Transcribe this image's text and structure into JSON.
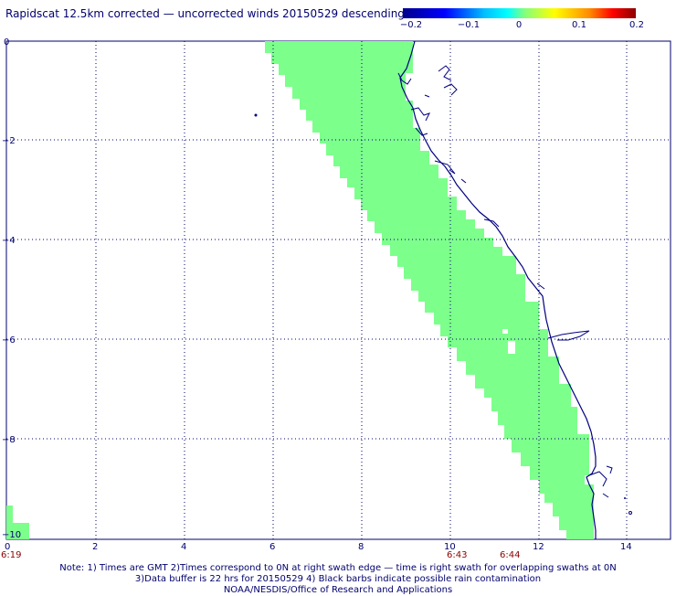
{
  "title": "Rapidscat 12.5km corrected — uncorrected winds 20150529 descending",
  "colorbar": {
    "labels": [
      "−0.2",
      "−0.1",
      "0",
      "0.1",
      "0.2"
    ],
    "min": -0.2,
    "max": 0.2
  },
  "axes": {
    "x_ticks": [
      "0",
      "2",
      "4",
      "6",
      "8",
      "10",
      "12",
      "14"
    ],
    "y_ticks": [
      "0",
      "−2",
      "−4",
      "−6",
      "−8",
      "−10"
    ],
    "x_range": [
      0,
      14.5
    ],
    "y_range": [
      0,
      -10
    ],
    "grid": "dotted"
  },
  "times": [
    {
      "label": "6:19",
      "at_x": 0
    },
    {
      "label": "6:43",
      "at_x": 10
    },
    {
      "label": "6:44",
      "at_x": 11.2
    }
  ],
  "colors": {
    "swath": "#7dff8c",
    "coast": "#000080",
    "text": "#00006e",
    "time_text": "#8b0000"
  },
  "notes": [
    "Note: 1) Times are GMT 2)Times correspond to 0N at right swath edge — time is right swath for overlapping swaths at 0N",
    "3)Data buffer is 22 hrs for 20150529 4) Black barbs indicate possible rain contamination",
    "NOAA/NESDIS/Office of Research and Applications"
  ]
}
